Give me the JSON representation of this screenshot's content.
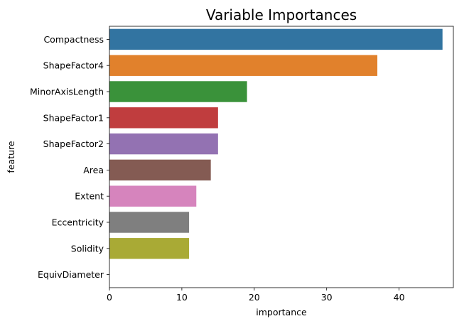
{
  "chart_data": {
    "type": "bar",
    "orientation": "horizontal",
    "title": "Variable Importances",
    "xlabel": "importance",
    "ylabel": "feature",
    "xlim": [
      0,
      47.5
    ],
    "xticks": [
      0,
      10,
      20,
      30,
      40
    ],
    "grid": false,
    "categories": [
      "Compactness",
      "ShapeFactor4",
      "MinorAxisLength",
      "ShapeFactor1",
      "ShapeFactor2",
      "Area",
      "Extent",
      "Eccentricity",
      "Solidity",
      "EquivDiameter"
    ],
    "values": [
      46,
      37,
      19,
      15,
      15,
      14,
      12,
      11,
      11,
      0
    ],
    "colors": [
      "#3274a1",
      "#e1812c",
      "#3a923a",
      "#c03d3e",
      "#9372b2",
      "#845b53",
      "#d684bd",
      "#7f7f7f",
      "#a9aa35",
      "#2fbfcf"
    ]
  }
}
